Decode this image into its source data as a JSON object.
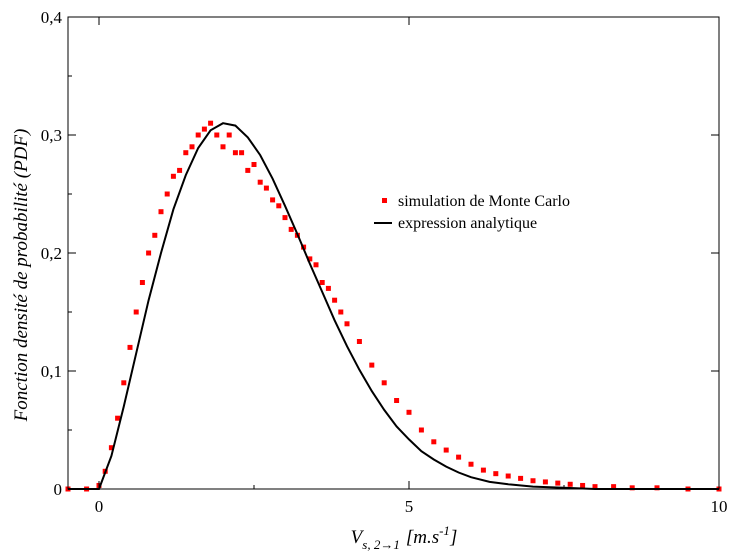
{
  "chart_data": {
    "type": "scatter",
    "title": "",
    "ylabel": "Fonction densité de probabilité (PDF)",
    "xlabel_main": "V",
    "xlabel_sub": "s, 2→1",
    "xlabel_unit": "[m.s",
    "xlabel_sup": "-1",
    "xlabel_close": "]",
    "xlim": [
      -0.5,
      10
    ],
    "ylim": [
      0,
      0.4
    ],
    "xticks": [
      0,
      5,
      10
    ],
    "xtick_labels": [
      "0",
      "5",
      "10"
    ],
    "yticks": [
      0,
      0.1,
      0.2,
      0.3,
      0.4
    ],
    "ytick_labels": [
      "0",
      "0,1",
      "0,2",
      "0,3",
      "0,4"
    ],
    "grid": false,
    "legend_position": "center-right",
    "colors": {
      "simulation": "#ff0000",
      "analytic": "#000000"
    },
    "series": [
      {
        "name": "simulation de Monte Carlo",
        "kind": "scatter",
        "x": [
          -0.5,
          -0.2,
          0.0,
          0.1,
          0.2,
          0.3,
          0.4,
          0.5,
          0.6,
          0.7,
          0.8,
          0.9,
          1.0,
          1.1,
          1.2,
          1.3,
          1.4,
          1.5,
          1.6,
          1.7,
          1.8,
          1.9,
          2.0,
          2.1,
          2.2,
          2.3,
          2.4,
          2.5,
          2.6,
          2.7,
          2.8,
          2.9,
          3.0,
          3.1,
          3.2,
          3.3,
          3.4,
          3.5,
          3.6,
          3.7,
          3.8,
          3.9,
          4.0,
          4.2,
          4.4,
          4.6,
          4.8,
          5.0,
          5.2,
          5.4,
          5.6,
          5.8,
          6.0,
          6.2,
          6.4,
          6.6,
          6.8,
          7.0,
          7.2,
          7.4,
          7.6,
          7.8,
          8.0,
          8.3,
          8.6,
          9.0,
          9.5,
          10.0
        ],
        "y": [
          0.0,
          0.0,
          0.003,
          0.015,
          0.035,
          0.06,
          0.09,
          0.12,
          0.15,
          0.175,
          0.2,
          0.215,
          0.235,
          0.25,
          0.265,
          0.27,
          0.285,
          0.29,
          0.3,
          0.305,
          0.31,
          0.3,
          0.29,
          0.3,
          0.285,
          0.285,
          0.27,
          0.275,
          0.26,
          0.255,
          0.245,
          0.24,
          0.23,
          0.22,
          0.215,
          0.205,
          0.195,
          0.19,
          0.175,
          0.17,
          0.16,
          0.15,
          0.14,
          0.125,
          0.105,
          0.09,
          0.075,
          0.065,
          0.05,
          0.04,
          0.033,
          0.027,
          0.021,
          0.016,
          0.013,
          0.011,
          0.009,
          0.007,
          0.006,
          0.005,
          0.004,
          0.003,
          0.002,
          0.002,
          0.001,
          0.001,
          0.0,
          0.0
        ]
      },
      {
        "name": "expression analytique",
        "kind": "line",
        "x": [
          -0.5,
          0.0,
          0.2,
          0.4,
          0.6,
          0.8,
          1.0,
          1.2,
          1.4,
          1.6,
          1.8,
          2.0,
          2.2,
          2.4,
          2.6,
          2.8,
          3.0,
          3.2,
          3.4,
          3.6,
          3.8,
          4.0,
          4.2,
          4.4,
          4.6,
          4.8,
          5.0,
          5.2,
          5.4,
          5.6,
          5.8,
          6.0,
          6.3,
          6.6,
          7.0,
          7.5,
          8.0,
          9.0,
          10.0
        ],
        "y": [
          0.0,
          0.0,
          0.028,
          0.07,
          0.115,
          0.16,
          0.2,
          0.237,
          0.266,
          0.289,
          0.304,
          0.31,
          0.308,
          0.298,
          0.283,
          0.263,
          0.24,
          0.216,
          0.191,
          0.167,
          0.143,
          0.121,
          0.101,
          0.083,
          0.067,
          0.053,
          0.042,
          0.032,
          0.025,
          0.019,
          0.014,
          0.01,
          0.006,
          0.004,
          0.002,
          0.001,
          0.0,
          0.0,
          0.0
        ]
      }
    ]
  }
}
